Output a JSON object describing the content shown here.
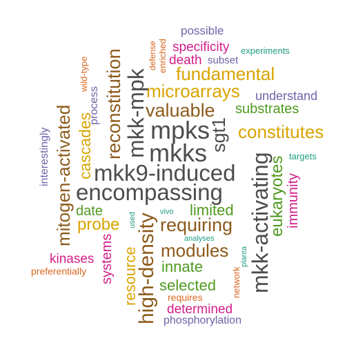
{
  "palette": {
    "dark_gray": "#4d4d4d",
    "brown": "#8c5a1b",
    "gold": "#d9a400",
    "green": "#4f9a1f",
    "magenta": "#d11d8a",
    "purple": "#6e63a8",
    "teal": "#1e9c82",
    "orange": "#d9661e"
  },
  "words": [
    {
      "text": "possible",
      "color": "purple"
    },
    {
      "text": "specificity",
      "color": "magenta"
    },
    {
      "text": "experiments",
      "color": "teal"
    },
    {
      "text": "defense",
      "color": "orange"
    },
    {
      "text": "enriched",
      "color": "orange"
    },
    {
      "text": "reconstitution",
      "color": "brown"
    },
    {
      "text": "wild-type",
      "color": "orange"
    },
    {
      "text": "death",
      "color": "magenta"
    },
    {
      "text": "subset",
      "color": "purple"
    },
    {
      "text": "fundamental",
      "color": "gold"
    },
    {
      "text": "microarrays",
      "color": "gold"
    },
    {
      "text": "understand",
      "color": "purple"
    },
    {
      "text": "process",
      "color": "purple"
    },
    {
      "text": "mkk-mpk",
      "color": "dark_gray"
    },
    {
      "text": "substrates",
      "color": "green"
    },
    {
      "text": "valuable",
      "color": "brown"
    },
    {
      "text": "mitogen-activated",
      "color": "brown"
    },
    {
      "text": "cascades",
      "color": "gold"
    },
    {
      "text": "interestingly",
      "color": "purple"
    },
    {
      "text": "mpks",
      "color": "dark_gray"
    },
    {
      "text": "constitutes",
      "color": "gold"
    },
    {
      "text": "sgt1",
      "color": "dark_gray"
    },
    {
      "text": "mkks",
      "color": "dark_gray"
    },
    {
      "text": "targets",
      "color": "teal"
    },
    {
      "text": "eukaryotes",
      "color": "green"
    },
    {
      "text": "immunity",
      "color": "magenta"
    },
    {
      "text": "mkk-activating",
      "color": "dark_gray"
    },
    {
      "text": "mkk9-induced",
      "color": "dark_gray"
    },
    {
      "text": "encompassing",
      "color": "dark_gray"
    },
    {
      "text": "date",
      "color": "green"
    },
    {
      "text": "used",
      "color": "teal"
    },
    {
      "text": "vivo",
      "color": "teal"
    },
    {
      "text": "limited",
      "color": "green"
    },
    {
      "text": "probe",
      "color": "gold"
    },
    {
      "text": "high-density",
      "color": "brown"
    },
    {
      "text": "requiring",
      "color": "brown"
    },
    {
      "text": "analyses",
      "color": "teal"
    },
    {
      "text": "systems",
      "color": "magenta"
    },
    {
      "text": "resource",
      "color": "gold"
    },
    {
      "text": "modules",
      "color": "brown"
    },
    {
      "text": "planta",
      "color": "teal"
    },
    {
      "text": "kinases",
      "color": "magenta"
    },
    {
      "text": "innate",
      "color": "green"
    },
    {
      "text": "preferentially",
      "color": "orange"
    },
    {
      "text": "network",
      "color": "orange"
    },
    {
      "text": "selected",
      "color": "green"
    },
    {
      "text": "requires",
      "color": "orange"
    },
    {
      "text": "determined",
      "color": "magenta"
    },
    {
      "text": "phosphorylation",
      "color": "purple"
    }
  ]
}
